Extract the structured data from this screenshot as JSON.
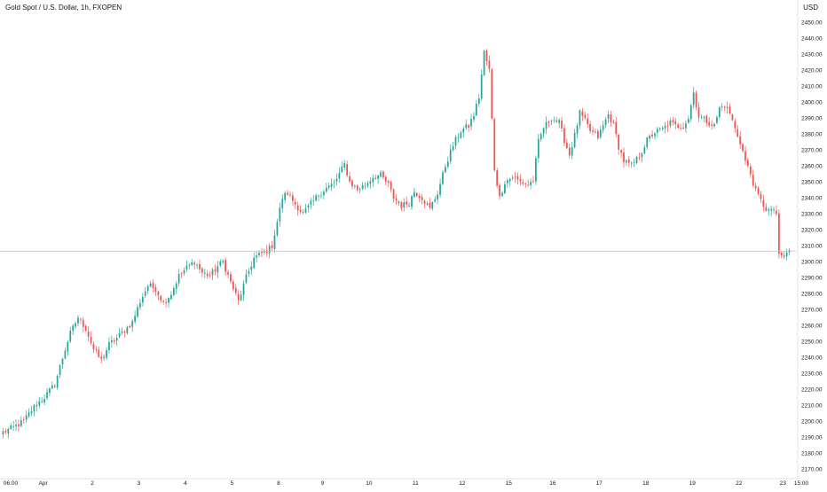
{
  "header": {
    "symbol_title": "Gold Spot / U.S. Dollar, 1h, FXOPEN",
    "currency": "USD"
  },
  "colors": {
    "up": "#26a69a",
    "down": "#ef5350",
    "price_line": "#f4b6b6",
    "axis_text": "#131722",
    "axis_line": "#e0e3eb"
  },
  "chart_data": {
    "type": "candlestick",
    "title": "Gold Spot / U.S. Dollar, 1h, FXOPEN",
    "ylabel": "USD",
    "ylim": [
      2165,
      2455
    ],
    "y_ticks": [
      2170,
      2180,
      2190,
      2200,
      2210,
      2220,
      2230,
      2240,
      2250,
      2260,
      2270,
      2280,
      2290,
      2300,
      2310,
      2320,
      2330,
      2340,
      2350,
      2360,
      2370,
      2380,
      2390,
      2400,
      2410,
      2420,
      2430,
      2440,
      2450
    ],
    "y_tick_labels": [
      "2170.00",
      "2180.00",
      "2190.00",
      "2200.00",
      "2210.00",
      "2220.00",
      "2230.00",
      "2240.00",
      "2250.00",
      "2260.00",
      "2270.00",
      "2280.00",
      "2290.00",
      "2300.00",
      "2310.00",
      "2320.00",
      "2330.00",
      "2340.00",
      "2350.00",
      "2360.00",
      "2370.00",
      "2380.00",
      "2390.00",
      "2400.00",
      "2410.00",
      "2420.00",
      "2430.00",
      "2440.00",
      "2450.00"
    ],
    "x_tick_labels": [
      "06:00",
      "Apr",
      "2",
      "3",
      "4",
      "5",
      "8",
      "9",
      "10",
      "11",
      "12",
      "15",
      "16",
      "17",
      "18",
      "19",
      "22",
      "23",
      "15:00"
    ],
    "current_price": 2306.5,
    "grid": false,
    "price_path": [
      [
        0,
        2193
      ],
      [
        4,
        2196
      ],
      [
        8,
        2200
      ],
      [
        12,
        2209
      ],
      [
        16,
        2215
      ],
      [
        20,
        2223
      ],
      [
        24,
        2245
      ],
      [
        26,
        2255
      ],
      [
        29,
        2265
      ],
      [
        32,
        2258
      ],
      [
        35,
        2245
      ],
      [
        38,
        2238
      ],
      [
        41,
        2248
      ],
      [
        44,
        2252
      ],
      [
        47,
        2257
      ],
      [
        50,
        2262
      ],
      [
        53,
        2275
      ],
      [
        56,
        2285
      ],
      [
        59,
        2283
      ],
      [
        62,
        2274
      ],
      [
        65,
        2280
      ],
      [
        68,
        2291
      ],
      [
        71,
        2296
      ],
      [
        74,
        2300
      ],
      [
        77,
        2293
      ],
      [
        80,
        2291
      ],
      [
        83,
        2297
      ],
      [
        85,
        2300
      ],
      [
        88,
        2287
      ],
      [
        91,
        2275
      ],
      [
        94,
        2290
      ],
      [
        97,
        2302
      ],
      [
        100,
        2305
      ],
      [
        103,
        2308
      ],
      [
        104,
        2310
      ],
      [
        106,
        2325
      ],
      [
        108,
        2340
      ],
      [
        110,
        2343
      ],
      [
        113,
        2336
      ],
      [
        116,
        2330
      ],
      [
        119,
        2336
      ],
      [
        122,
        2342
      ],
      [
        125,
        2346
      ],
      [
        128,
        2349
      ],
      [
        130,
        2355
      ],
      [
        132,
        2361
      ],
      [
        134,
        2350
      ],
      [
        137,
        2345
      ],
      [
        140,
        2348
      ],
      [
        143,
        2353
      ],
      [
        146,
        2354
      ],
      [
        149,
        2348
      ],
      [
        151,
        2340
      ],
      [
        154,
        2335
      ],
      [
        157,
        2337
      ],
      [
        159,
        2344
      ],
      [
        162,
        2340
      ],
      [
        165,
        2333
      ],
      [
        168,
        2343
      ],
      [
        171,
        2360
      ],
      [
        174,
        2373
      ],
      [
        177,
        2382
      ],
      [
        180,
        2385
      ],
      [
        182,
        2392
      ],
      [
        184,
        2403
      ],
      [
        186,
        2431
      ],
      [
        188,
        2420
      ],
      [
        190,
        2358
      ],
      [
        192,
        2340
      ],
      [
        194,
        2350
      ],
      [
        197,
        2353
      ],
      [
        200,
        2350
      ],
      [
        203,
        2348
      ],
      [
        205,
        2351
      ],
      [
        207,
        2375
      ],
      [
        209,
        2384
      ],
      [
        212,
        2390
      ],
      [
        215,
        2387
      ],
      [
        217,
        2376
      ],
      [
        219,
        2367
      ],
      [
        221,
        2379
      ],
      [
        223,
        2393
      ],
      [
        225,
        2388
      ],
      [
        227,
        2382
      ],
      [
        230,
        2378
      ],
      [
        232,
        2385
      ],
      [
        234,
        2392
      ],
      [
        236,
        2386
      ],
      [
        238,
        2372
      ],
      [
        240,
        2363
      ],
      [
        243,
        2360
      ],
      [
        246,
        2366
      ],
      [
        249,
        2376
      ],
      [
        252,
        2381
      ],
      [
        255,
        2383
      ],
      [
        258,
        2387
      ],
      [
        260,
        2385
      ],
      [
        263,
        2385
      ],
      [
        265,
        2390
      ],
      [
        267,
        2406
      ],
      [
        269,
        2391
      ],
      [
        272,
        2388
      ],
      [
        275,
        2385
      ],
      [
        277,
        2396
      ],
      [
        279,
        2398
      ],
      [
        281,
        2393
      ],
      [
        283,
        2383
      ],
      [
        285,
        2375
      ],
      [
        287,
        2363
      ],
      [
        289,
        2355
      ],
      [
        291,
        2344
      ],
      [
        293,
        2338
      ],
      [
        295,
        2333
      ],
      [
        297,
        2331
      ],
      [
        298,
        2333
      ],
      [
        299,
        2330
      ],
      [
        300,
        2303
      ],
      [
        302,
        2303
      ],
      [
        304,
        2307
      ]
    ],
    "day_boundaries": [
      {
        "label": "Apr",
        "index": 16
      },
      {
        "label": "2",
        "index": 35
      },
      {
        "label": "3",
        "index": 53
      },
      {
        "label": "4",
        "index": 71
      },
      {
        "label": "5",
        "index": 89
      },
      {
        "label": "8",
        "index": 107
      },
      {
        "label": "9",
        "index": 124
      },
      {
        "label": "10",
        "index": 142
      },
      {
        "label": "11",
        "index": 160
      },
      {
        "label": "12",
        "index": 178
      },
      {
        "label": "15",
        "index": 196
      },
      {
        "label": "16",
        "index": 213
      },
      {
        "label": "17",
        "index": 231
      },
      {
        "label": "18",
        "index": 249
      },
      {
        "label": "19",
        "index": 267
      },
      {
        "label": "22",
        "index": 285
      },
      {
        "label": "23",
        "index": 302
      }
    ]
  }
}
